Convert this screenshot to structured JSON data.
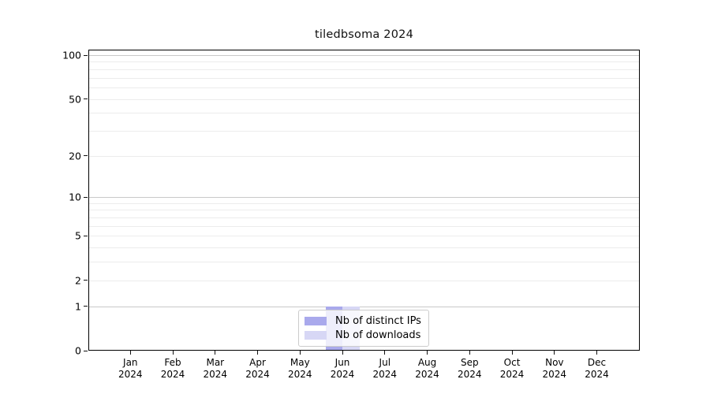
{
  "chart_data": {
    "type": "bar",
    "title": "tiledbsoma 2024",
    "categories": [
      "Jan",
      "Feb",
      "Mar",
      "Apr",
      "May",
      "Jun",
      "Jul",
      "Aug",
      "Sep",
      "Oct",
      "Nov",
      "Dec"
    ],
    "year_label": "2024",
    "series": [
      {
        "name": "Nb of distinct IPs",
        "color": "#a9a9ec",
        "values": [
          0,
          0,
          0,
          0,
          0,
          1,
          0,
          0,
          0,
          0,
          0,
          0
        ]
      },
      {
        "name": "Nb of downloads",
        "color": "#d7d7f5",
        "values": [
          0,
          0,
          0,
          0,
          0,
          1,
          0,
          0,
          0,
          0,
          0,
          0
        ]
      }
    ],
    "y_axis": {
      "scale": "log1p",
      "tick_values": [
        0,
        1,
        2,
        5,
        10,
        20,
        50,
        100
      ],
      "tick_labels": [
        "0",
        "1",
        "2",
        "5",
        "10",
        "20",
        "50",
        "100"
      ],
      "major_gridlines": [
        1,
        10,
        100
      ],
      "minor_gridlines": [
        2,
        3,
        4,
        5,
        6,
        7,
        8,
        9,
        20,
        30,
        40,
        50,
        60,
        70,
        80,
        90
      ]
    },
    "legend_position": "lower center",
    "grid": true,
    "colors": {
      "major_grid": "#c9c9c9",
      "minor_grid": "#ececec",
      "spine": "#000000",
      "legend_border": "#cccccc"
    }
  }
}
